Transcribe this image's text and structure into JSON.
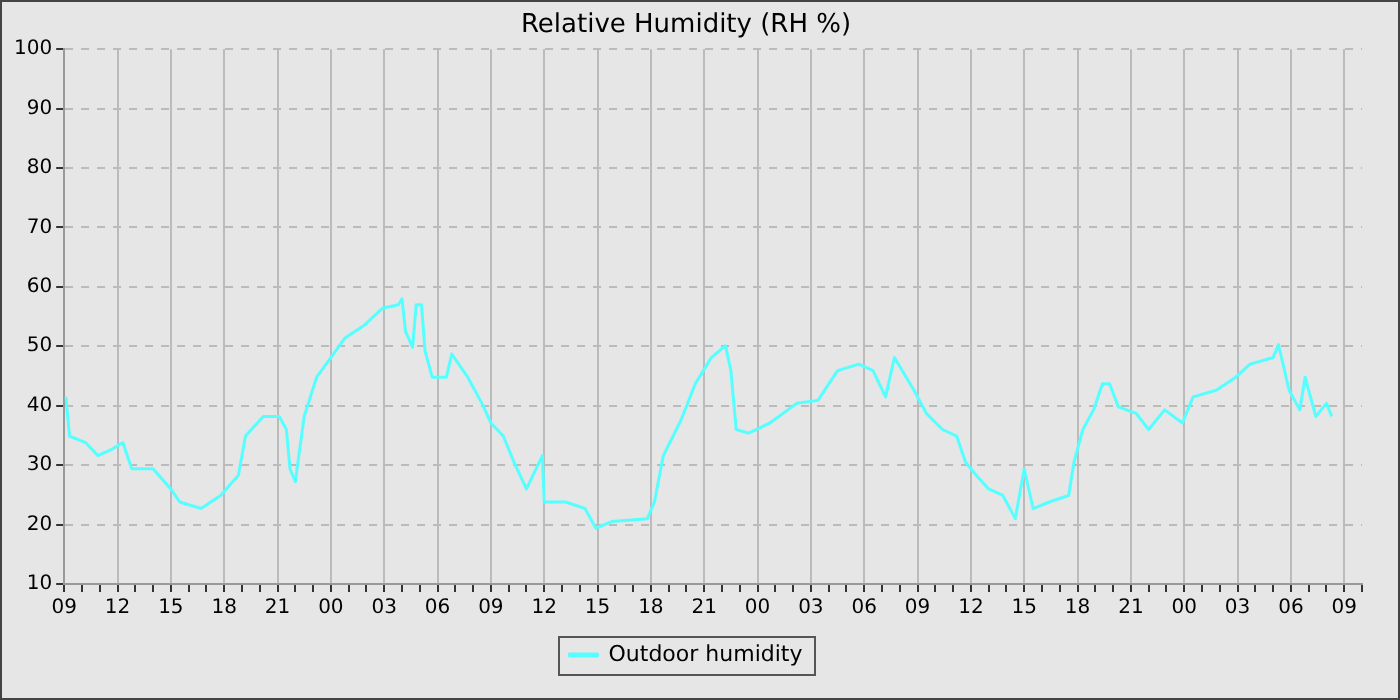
{
  "chart_data": {
    "type": "line",
    "title": "Relative Humidity (RH %)",
    "x": [
      9.1,
      9.3,
      10.2,
      10.9,
      11.7,
      12.3,
      12.8,
      14,
      15,
      15.5,
      16.7,
      17.8,
      18.8,
      19.2,
      20.2,
      21.1,
      21.5,
      21.7,
      22,
      22.5,
      23.2,
      24,
      24.8,
      25.9,
      26.9,
      27.8,
      28,
      28.2,
      28.6,
      28.8,
      29.1,
      29.3,
      29.7,
      30.5,
      30.8,
      31.7,
      32.5,
      33,
      33.7,
      34.3,
      35,
      35.9,
      36,
      37.2,
      38.3,
      38.9,
      39.8,
      41.8,
      42.2,
      42.7,
      43.7,
      44.5,
      45.4,
      46.2,
      46.5,
      46.8,
      47.5,
      48.7,
      50.2,
      51.4,
      52.5,
      53.7,
      54.5,
      55.2,
      55.7,
      56.8,
      57.5,
      58.4,
      59.2,
      59.7,
      60.3,
      61,
      61.8,
      62.5,
      63,
      63.5,
      64.4,
      65.5,
      65.8,
      66.3,
      66.9,
      67.4,
      67.8,
      68.3,
      69.3,
      70,
      70.9,
      71.9,
      72.5,
      73.8,
      74.9,
      75.7,
      77,
      77.3,
      77.9,
      78.5,
      78.8,
      79.4,
      80,
      80.3
    ],
    "series": [
      {
        "name": "Outdoor humidity",
        "color": "#55ffff",
        "values": [
          41.5,
          34.9,
          33.8,
          31.6,
          32.7,
          33.8,
          29.4,
          29.4,
          26,
          23.8,
          22.7,
          24.9,
          28.3,
          34.9,
          38.2,
          38.2,
          36,
          29.4,
          27.2,
          38.2,
          44.8,
          48.1,
          51.4,
          53.6,
          56.4,
          57,
          58,
          52.5,
          49.8,
          57,
          57,
          49.2,
          44.8,
          44.8,
          48.7,
          44.8,
          40.4,
          37.1,
          34.9,
          30.5,
          26,
          31.6,
          23.8,
          23.8,
          22.7,
          19.4,
          20.5,
          21,
          23.8,
          31.6,
          37.6,
          43.7,
          48.1,
          50.1,
          45.9,
          36,
          35.4,
          37.1,
          40.4,
          40.9,
          45.9,
          47,
          45.9,
          41.5,
          48.1,
          42.6,
          38.7,
          36,
          34.9,
          30.5,
          28.3,
          26,
          24.9,
          21,
          29.4,
          22.7,
          23.8,
          24.9,
          30.5,
          36,
          39.3,
          43.7,
          43.7,
          39.8,
          38.7,
          36,
          39.3,
          37.1,
          41.5,
          42.6,
          44.8,
          47,
          48.1,
          50.3,
          42.6,
          39.3,
          44.8,
          38.2,
          40.4,
          38.2
        ]
      }
    ],
    "xlim": [
      9,
      82
    ],
    "xticks": [
      {
        "value": 9,
        "label": "09"
      },
      {
        "value": 10,
        "label": null
      },
      {
        "value": 11,
        "label": null
      },
      {
        "value": 12,
        "label": "12"
      },
      {
        "value": 13,
        "label": null
      },
      {
        "value": 14,
        "label": null
      },
      {
        "value": 15,
        "label": "15"
      },
      {
        "value": 16,
        "label": null
      },
      {
        "value": 17,
        "label": null
      },
      {
        "value": 18,
        "label": "18"
      },
      {
        "value": 19,
        "label": null
      },
      {
        "value": 20,
        "label": null
      },
      {
        "value": 21,
        "label": "21"
      },
      {
        "value": 22,
        "label": null
      },
      {
        "value": 23,
        "label": null
      },
      {
        "value": 24,
        "label": "00"
      },
      {
        "value": 25,
        "label": null
      },
      {
        "value": 26,
        "label": null
      },
      {
        "value": 27,
        "label": "03"
      },
      {
        "value": 28,
        "label": null
      },
      {
        "value": 29,
        "label": null
      },
      {
        "value": 30,
        "label": "06"
      },
      {
        "value": 31,
        "label": null
      },
      {
        "value": 32,
        "label": null
      },
      {
        "value": 33,
        "label": "09"
      },
      {
        "value": 34,
        "label": null
      },
      {
        "value": 35,
        "label": null
      },
      {
        "value": 36,
        "label": "12"
      },
      {
        "value": 37,
        "label": null
      },
      {
        "value": 38,
        "label": null
      },
      {
        "value": 39,
        "label": "15"
      },
      {
        "value": 40,
        "label": null
      },
      {
        "value": 41,
        "label": null
      },
      {
        "value": 42,
        "label": "18"
      },
      {
        "value": 43,
        "label": null
      },
      {
        "value": 44,
        "label": null
      },
      {
        "value": 45,
        "label": "21"
      },
      {
        "value": 46,
        "label": null
      },
      {
        "value": 47,
        "label": null
      },
      {
        "value": 48,
        "label": "00"
      },
      {
        "value": 49,
        "label": null
      },
      {
        "value": 50,
        "label": null
      },
      {
        "value": 51,
        "label": "03"
      },
      {
        "value": 52,
        "label": null
      },
      {
        "value": 53,
        "label": null
      },
      {
        "value": 54,
        "label": "06"
      },
      {
        "value": 55,
        "label": null
      },
      {
        "value": 56,
        "label": null
      },
      {
        "value": 57,
        "label": "09"
      },
      {
        "value": 58,
        "label": null
      },
      {
        "value": 59,
        "label": null
      },
      {
        "value": 60,
        "label": "12"
      },
      {
        "value": 61,
        "label": null
      },
      {
        "value": 62,
        "label": null
      },
      {
        "value": 63,
        "label": "15"
      },
      {
        "value": 64,
        "label": null
      },
      {
        "value": 65,
        "label": null
      },
      {
        "value": 66,
        "label": "18"
      },
      {
        "value": 67,
        "label": null
      },
      {
        "value": 68,
        "label": null
      },
      {
        "value": 69,
        "label": "21"
      },
      {
        "value": 70,
        "label": null
      },
      {
        "value": 71,
        "label": null
      },
      {
        "value": 72,
        "label": "00"
      },
      {
        "value": 73,
        "label": null
      },
      {
        "value": 74,
        "label": null
      },
      {
        "value": 75,
        "label": "03"
      },
      {
        "value": 76,
        "label": null
      },
      {
        "value": 77,
        "label": null
      },
      {
        "value": 78,
        "label": "06"
      },
      {
        "value": 79,
        "label": null
      },
      {
        "value": 80,
        "label": null
      },
      {
        "value": 81,
        "label": "09"
      },
      {
        "value": 82,
        "label": null
      }
    ],
    "ylim": [
      10,
      100
    ],
    "yticks": [
      10,
      20,
      30,
      40,
      50,
      60,
      70,
      80,
      90,
      100
    ],
    "grid": true,
    "legend": "bottom",
    "marker": "none",
    "line_style": "solid"
  }
}
